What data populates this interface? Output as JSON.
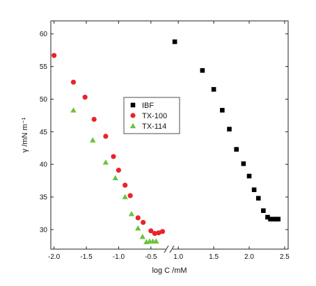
{
  "chart_data": {
    "type": "scatter",
    "title": "",
    "xlabel": "log C /mM",
    "ylabel": "γ /mN m⁻¹",
    "ylim": [
      27,
      62
    ],
    "x_axis_break": true,
    "x_segments": [
      {
        "range": [
          -2.05,
          -0.25
        ],
        "ticks": [
          -2.0,
          -1.5,
          -1.0,
          -0.5
        ],
        "tick_labels": [
          "-2.0",
          "-1.5",
          "-1.0",
          "-0.5"
        ]
      },
      {
        "range": [
          0.9,
          2.55
        ],
        "ticks": [
          1.0,
          1.5,
          2.0,
          2.5
        ],
        "tick_labels": [
          "1.0",
          "1.5",
          "2.0",
          "2.5"
        ]
      }
    ],
    "y_ticks": [
      30,
      35,
      40,
      45,
      50,
      55,
      60
    ],
    "y_tick_labels": [
      "30",
      "35",
      "40",
      "45",
      "50",
      "55",
      "60"
    ],
    "legend_position": "center",
    "series": [
      {
        "name": "IBF",
        "marker": "square",
        "color": "#000000",
        "x": [
          0.95,
          1.34,
          1.5,
          1.62,
          1.72,
          1.82,
          1.92,
          2.0,
          2.07,
          2.13,
          2.2,
          2.26,
          2.3,
          2.34,
          2.38,
          2.41
        ],
        "y": [
          58.8,
          54.4,
          51.5,
          48.3,
          45.4,
          42.3,
          40.1,
          38.2,
          36.1,
          34.8,
          32.9,
          31.9,
          31.6,
          31.6,
          31.6,
          31.6
        ]
      },
      {
        "name": "TX-100",
        "marker": "circle",
        "color": "#e8242a",
        "x": [
          -2.0,
          -1.7,
          -1.52,
          -1.38,
          -1.2,
          -1.08,
          -1.0,
          -0.9,
          -0.82,
          -0.7,
          -0.62,
          -0.5,
          -0.44,
          -0.38,
          -0.32
        ],
        "y": [
          56.7,
          52.6,
          50.3,
          46.9,
          44.3,
          41.2,
          39.1,
          36.8,
          35.2,
          31.8,
          31.1,
          29.8,
          29.4,
          29.5,
          29.7
        ]
      },
      {
        "name": "TX-114",
        "marker": "triangle",
        "color": "#6ac23d",
        "x": [
          -1.7,
          -1.4,
          -1.2,
          -1.05,
          -0.9,
          -0.8,
          -0.7,
          -0.63,
          -0.57,
          -0.52,
          -0.47,
          -0.42
        ],
        "y": [
          48.3,
          43.7,
          40.3,
          37.9,
          35.0,
          32.4,
          30.2,
          28.9,
          28.1,
          28.2,
          28.2,
          28.2
        ]
      }
    ]
  }
}
